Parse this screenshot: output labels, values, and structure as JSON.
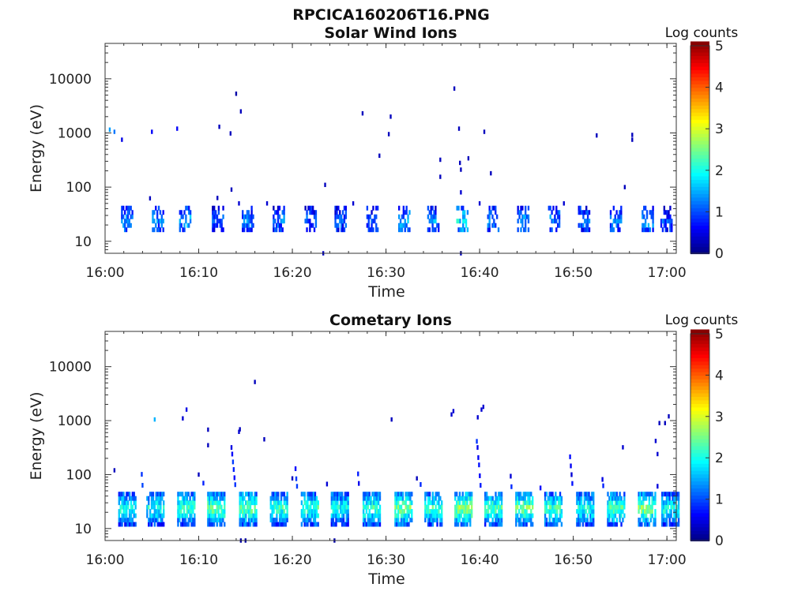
{
  "figure": {
    "title": "RPCICA160206T16.PNG"
  },
  "chart_data": [
    {
      "type": "heatmap",
      "title": "Solar Wind Ions",
      "xlabel": "Time",
      "ylabel": "Energy (eV)",
      "x_range": [
        "16:00",
        "17:01"
      ],
      "x_ticks": [
        "16:00",
        "16:10",
        "16:20",
        "16:30",
        "16:40",
        "16:50",
        "17:00"
      ],
      "y_scale": "log",
      "y_range": [
        6,
        45000
      ],
      "y_ticks": [
        "10",
        "100",
        "1000",
        "10000"
      ],
      "colorbar": {
        "label": "Log counts",
        "range": [
          0,
          5
        ],
        "ticks": [
          "0",
          "1",
          "2",
          "3",
          "4",
          "5"
        ],
        "colormap": "jet"
      },
      "cells": [
        [
          "16:00.5",
          1150,
          1.4
        ],
        [
          "16:01.0",
          1050,
          1.2
        ],
        [
          "16:01.8",
          750,
          0.5
        ],
        [
          "16:04.8",
          62,
          0.3
        ],
        [
          "16:05.0",
          1050,
          0.6
        ],
        [
          "16:07.7",
          1200,
          0.6
        ],
        [
          "16:12.0",
          63,
          0.3
        ],
        [
          "16:12.2",
          1300,
          0.3
        ],
        [
          "16:13.4",
          980,
          0.3
        ],
        [
          "16:13.5",
          90,
          0.3
        ],
        [
          "16:14.0",
          5300,
          0.2
        ],
        [
          "16:14.5",
          2500,
          0.3
        ],
        [
          "16:14.3",
          50,
          0.4
        ],
        [
          "16:17.3",
          50,
          0.4
        ],
        [
          "16:23.5",
          110,
          0.3
        ],
        [
          "16:23.3",
          6,
          0.3
        ],
        [
          "16:26.5",
          50,
          0.4
        ],
        [
          "16:27.5",
          2300,
          0.3
        ],
        [
          "16:29.3",
          380,
          0.3
        ],
        [
          "16:30.3",
          950,
          0.3
        ],
        [
          "16:30.5",
          2000,
          0.3
        ],
        [
          "16:35.8",
          320,
          0.3
        ],
        [
          "16:35.8",
          155,
          0.3
        ],
        [
          "16:37.3",
          6600,
          0.3
        ],
        [
          "16:37.8",
          1200,
          0.3
        ],
        [
          "16:37.9",
          280,
          0.3
        ],
        [
          "16:38.0",
          80,
          0.4
        ],
        [
          "16:38.0",
          210,
          0.3
        ],
        [
          "16:38.8",
          340,
          0.3
        ],
        [
          "16:40.0",
          50,
          0.4
        ],
        [
          "16:40.5",
          1050,
          0.3
        ],
        [
          "16:41.2",
          180,
          0.3
        ],
        [
          "16:49.0",
          50,
          0.4
        ],
        [
          "16:52.5",
          900,
          0.3
        ],
        [
          "16:55.5",
          100,
          0.3
        ],
        [
          "16:56.3",
          920,
          0.3
        ],
        [
          "16:56.3",
          750,
          0.3
        ],
        [
          "16:38.0",
          6,
          0.3
        ]
      ],
      "bursts": [
        [
          "16:01.8",
          1.3
        ],
        [
          "16:05.1",
          1.3
        ],
        [
          "16:08.0",
          1.5
        ],
        [
          "16:11.5",
          1.1
        ],
        [
          "16:14.7",
          1.2
        ],
        [
          "16:18.0",
          1.2
        ],
        [
          "16:21.4",
          1.0
        ],
        [
          "16:24.6",
          1.0
        ],
        [
          "16:28.0",
          1.0
        ],
        [
          "16:31.4",
          1.5
        ],
        [
          "16:34.5",
          1.3
        ],
        [
          "16:37.6",
          1.8
        ],
        [
          "16:40.9",
          1.3
        ],
        [
          "16:44.1",
          1.5
        ],
        [
          "16:47.4",
          1.3
        ],
        [
          "16:50.6",
          1.2
        ],
        [
          "16:54.0",
          1.3
        ],
        [
          "16:57.4",
          1.4
        ],
        [
          "16:59.4",
          1.0
        ]
      ]
    },
    {
      "type": "heatmap",
      "title": "Cometary Ions",
      "xlabel": "Time",
      "ylabel": "Energy (eV)",
      "x_range": [
        "16:00",
        "17:01"
      ],
      "x_ticks": [
        "16:00",
        "16:10",
        "16:20",
        "16:30",
        "16:40",
        "16:50",
        "17:00"
      ],
      "y_scale": "log",
      "y_range": [
        6,
        45000
      ],
      "y_ticks": [
        "10",
        "100",
        "1000",
        "10000"
      ],
      "colorbar": {
        "label": "Log counts",
        "range": [
          0,
          5
        ],
        "ticks": [
          "0",
          "1",
          "2",
          "3",
          "4",
          "5"
        ],
        "colormap": "jet"
      },
      "cells": [
        [
          "16:05.3",
          1050,
          1.5
        ],
        [
          "16:08.3",
          1100,
          0.4
        ],
        [
          "16:08.7",
          1600,
          0.5
        ],
        [
          "16:11.0",
          680,
          0.3
        ],
        [
          "16:11.0",
          350,
          0.3
        ],
        [
          "16:14.3",
          620,
          0.4
        ],
        [
          "16:14.4",
          690,
          0.3
        ],
        [
          "16:16.0",
          5200,
          0.3
        ],
        [
          "16:17.0",
          450,
          0.3
        ],
        [
          "16:30.6",
          1050,
          0.3
        ],
        [
          "16:37.0",
          1300,
          0.4
        ],
        [
          "16:37.2",
          1500,
          0.4
        ],
        [
          "16:39.8",
          1150,
          0.4
        ],
        [
          "16:40.2",
          1600,
          0.4
        ],
        [
          "16:40.4",
          1800,
          0.4
        ],
        [
          "16:55.3",
          320,
          0.4
        ],
        [
          "16:58.8",
          420,
          0.4
        ],
        [
          "16:59.0",
          240,
          0.4
        ],
        [
          "16:59.2",
          900,
          0.3
        ],
        [
          "16:59.8",
          900,
          0.3
        ],
        [
          "17:00.2",
          1200,
          0.3
        ],
        [
          "16:01.0",
          120,
          0.3
        ],
        [
          "16:10.0",
          100,
          0.3
        ],
        [
          "16:20.0",
          85,
          0.3
        ],
        [
          "16:33.3",
          85,
          0.3
        ],
        [
          "16:14.5",
          6,
          0.2
        ],
        [
          "16:15.0",
          6,
          0.2
        ],
        [
          "16:24.5",
          6,
          0.2
        ]
      ],
      "bursts": [
        [
          "16:01.5",
          2.0
        ],
        [
          "16:04.5",
          2.0
        ],
        [
          "16:07.8",
          2.2
        ],
        [
          "16:11.0",
          2.4
        ],
        [
          "16:14.4",
          2.4
        ],
        [
          "16:17.7",
          2.2
        ],
        [
          "16:21.0",
          2.2
        ],
        [
          "16:24.2",
          2.0
        ],
        [
          "16:27.6",
          2.2
        ],
        [
          "16:31.0",
          2.5
        ],
        [
          "16:34.2",
          2.2
        ],
        [
          "16:37.4",
          2.7
        ],
        [
          "16:40.6",
          2.3
        ],
        [
          "16:43.9",
          2.5
        ],
        [
          "16:47.0",
          2.2
        ],
        [
          "16:50.4",
          2.0
        ],
        [
          "16:53.7",
          2.3
        ],
        [
          "16:57.0",
          2.6
        ],
        [
          "16:59.5",
          2.0
        ]
      ]
    }
  ]
}
